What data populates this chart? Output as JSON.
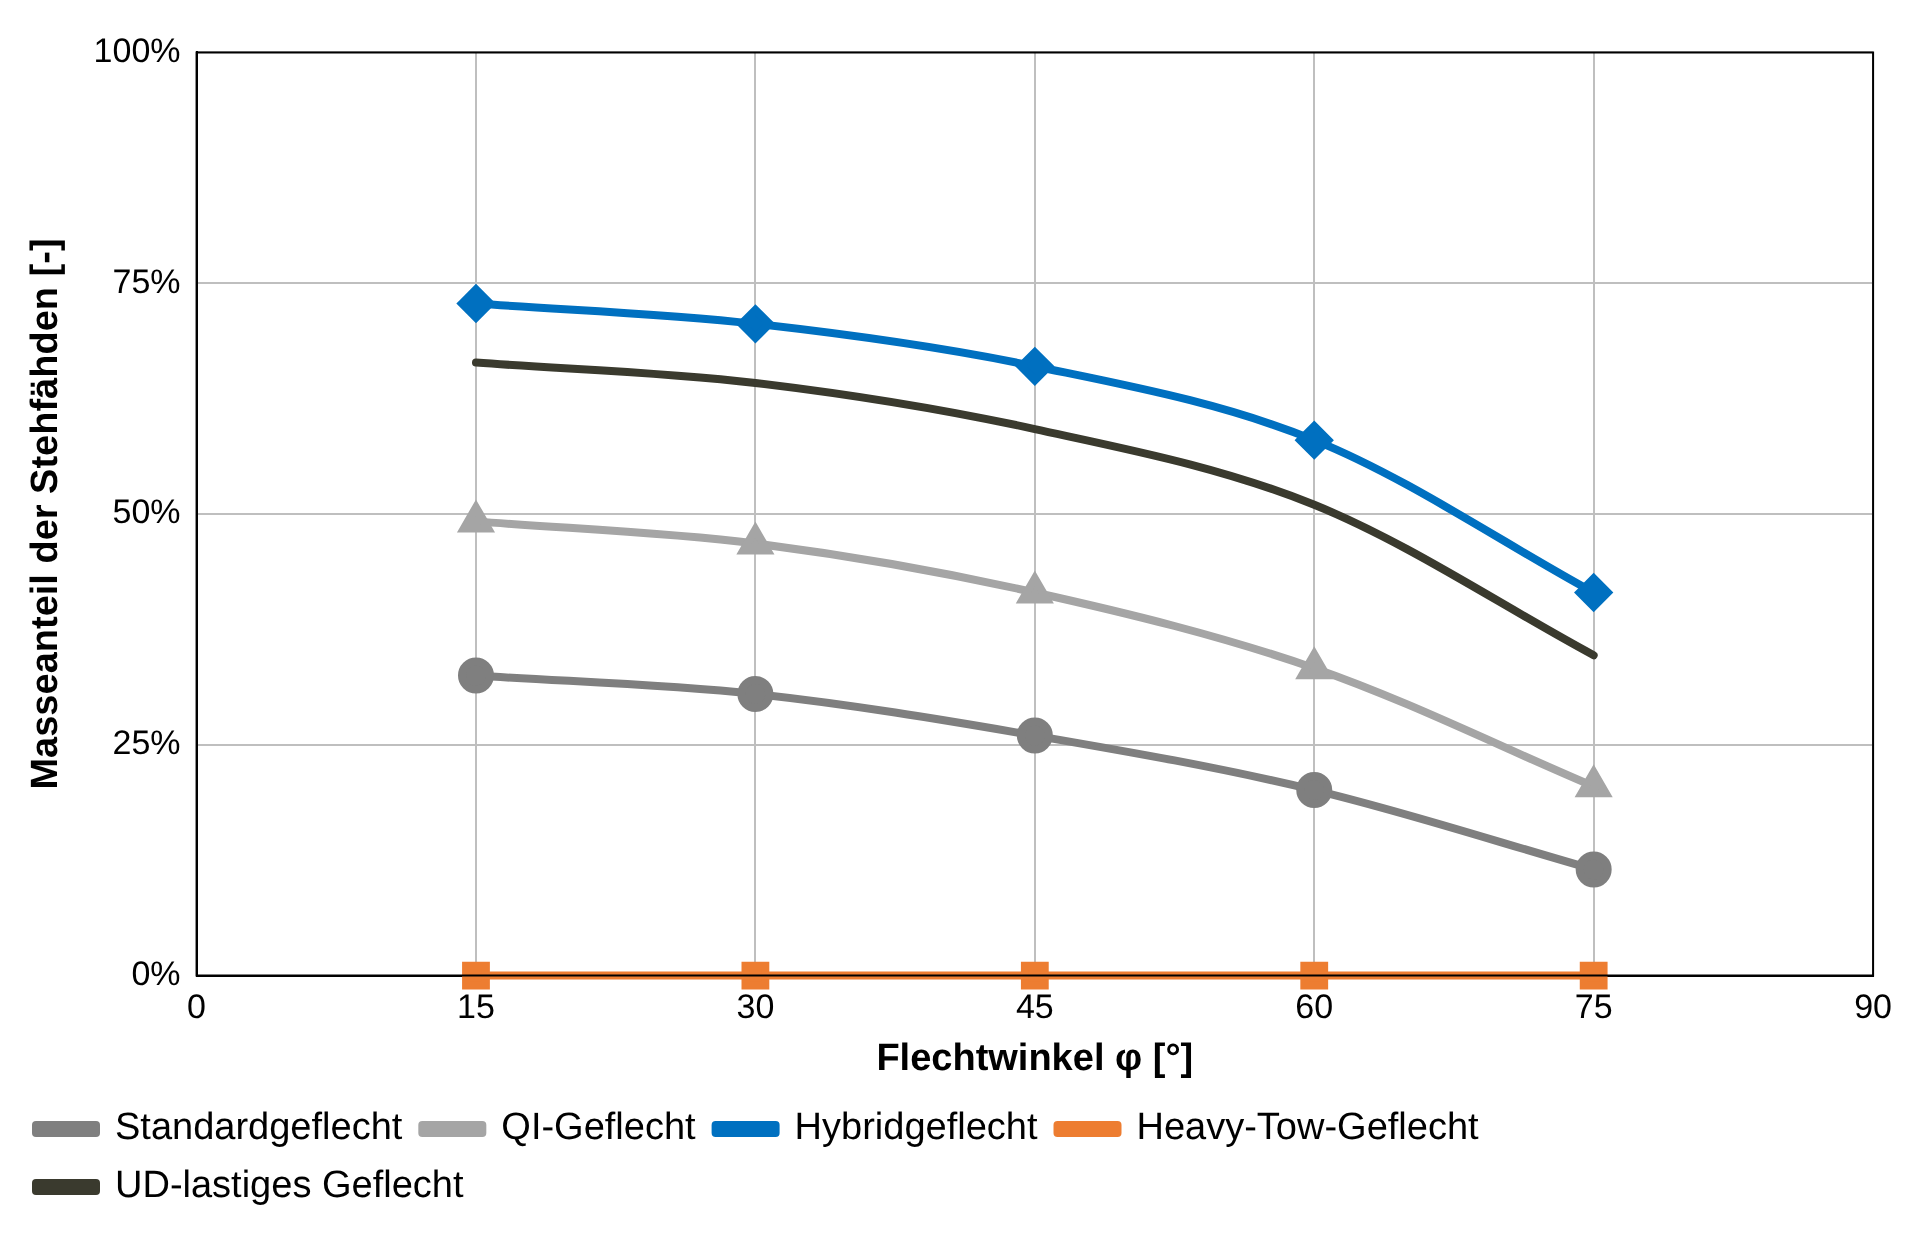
{
  "chart_data": {
    "type": "line",
    "xlabel": "Flechtwinkel φ [°]",
    "ylabel": "Masseanteil der Stehfähden [-]",
    "x": [
      15,
      30,
      45,
      60,
      75
    ],
    "xlim": [
      0,
      90
    ],
    "xticks": [
      0,
      15,
      30,
      45,
      60,
      75,
      90
    ],
    "ylim": [
      0,
      100
    ],
    "yticks": [
      {
        "value": 0,
        "label": "0%"
      },
      {
        "value": 25,
        "label": "25%"
      },
      {
        "value": 50,
        "label": "50%"
      },
      {
        "value": 75,
        "label": "75%"
      },
      {
        "value": 100,
        "label": "100%"
      }
    ],
    "grid": true,
    "legend": "bottom",
    "series": [
      {
        "name": "Standardgeflecht",
        "color": "#7f7f7f",
        "marker": "circle",
        "values": [
          32.5,
          30.5,
          26,
          20.1,
          11.5
        ]
      },
      {
        "name": "QI-Geflecht",
        "color": "#a5a5a5",
        "marker": "triangle",
        "values": [
          49.2,
          46.8,
          41.5,
          33.3,
          20.5
        ]
      },
      {
        "name": "Hybridgeflecht",
        "color": "#0070c0",
        "marker": "diamond",
        "values": [
          72.8,
          70.6,
          66,
          58,
          41.5
        ]
      },
      {
        "name": "Heavy-Tow-Geflecht",
        "color": "#ed7d31",
        "marker": "square",
        "values": [
          0,
          0,
          0,
          0,
          0
        ]
      },
      {
        "name": "UD-lastiges Geflecht",
        "color": "#3a3a2e",
        "marker": "none",
        "values": [
          66.4,
          64.2,
          59.2,
          51,
          34.7
        ]
      }
    ]
  }
}
